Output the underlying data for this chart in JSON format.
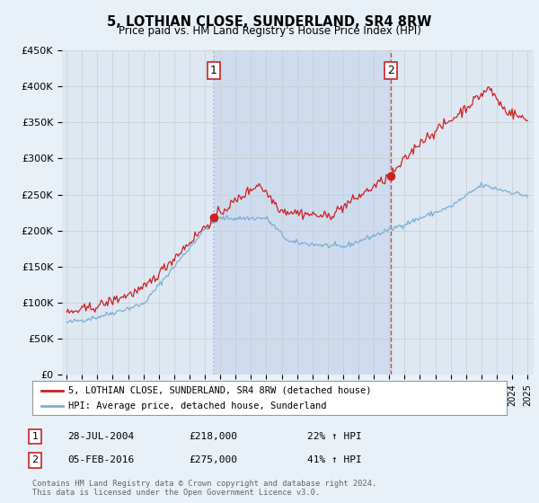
{
  "title": "5, LOTHIAN CLOSE, SUNDERLAND, SR4 8RW",
  "subtitle": "Price paid vs. HM Land Registry's House Price Index (HPI)",
  "ylim": [
    0,
    450000
  ],
  "yticks": [
    0,
    50000,
    100000,
    150000,
    200000,
    250000,
    300000,
    350000,
    400000,
    450000
  ],
  "ytick_labels": [
    "£0",
    "£50K",
    "£100K",
    "£150K",
    "£200K",
    "£250K",
    "£300K",
    "£350K",
    "£400K",
    "£450K"
  ],
  "sale1_date": 2004.57,
  "sale1_price": 218000,
  "sale1_label": "1",
  "sale2_date": 2016.09,
  "sale2_price": 275000,
  "sale2_label": "2",
  "hpi_color": "#7bafd4",
  "price_color": "#cc2222",
  "marker_color": "#cc2222",
  "vline1_color": "#aaaacc",
  "vline2_color": "#cc2222",
  "grid_color": "#cccccc",
  "bg_color": "#e8f0f8",
  "plot_bg": "#dde8f3",
  "shade_color": "#c8d8ee",
  "legend_label_price": "5, LOTHIAN CLOSE, SUNDERLAND, SR4 8RW (detached house)",
  "legend_label_hpi": "HPI: Average price, detached house, Sunderland",
  "table_rows": [
    {
      "num": "1",
      "date": "28-JUL-2004",
      "price": "£218,000",
      "hpi": "22% ↑ HPI"
    },
    {
      "num": "2",
      "date": "05-FEB-2016",
      "price": "£275,000",
      "hpi": "41% ↑ HPI"
    }
  ],
  "footer": "Contains HM Land Registry data © Crown copyright and database right 2024.\nThis data is licensed under the Open Government Licence v3.0."
}
